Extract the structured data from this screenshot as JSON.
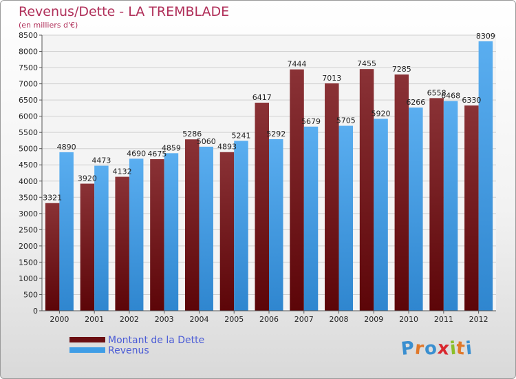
{
  "header": {
    "title": "Revenus/Dette - LA TREMBLADE",
    "subtitle": "(en milliers d'€)"
  },
  "chart_data": {
    "type": "bar",
    "title": "Revenus/Dette - LA TREMBLADE",
    "subtitle": "(en milliers d'€)",
    "categories": [
      "2000",
      "2001",
      "2002",
      "2003",
      "2004",
      "2005",
      "2006",
      "2007",
      "2008",
      "2009",
      "2010",
      "2011",
      "2012"
    ],
    "series": [
      {
        "name": "Montant de la Dette",
        "color": "#6b0f12",
        "values": [
          3321,
          3920,
          4132,
          4675,
          5286,
          4893,
          6417,
          7444,
          7013,
          7455,
          7285,
          6558,
          6330
        ]
      },
      {
        "name": "Revenus",
        "color": "#3f9de6",
        "values": [
          4890,
          4473,
          4690,
          4859,
          5060,
          5241,
          5292,
          5679,
          5705,
          5920,
          6266,
          6468,
          8309
        ]
      }
    ],
    "value_labels": {
      "Montant de la Dette": [
        "3321",
        "3920",
        "4132",
        "4675",
        "5286",
        "4893",
        "6417",
        "7444",
        "7013",
        "7455",
        "7285",
        "6558",
        "6330"
      ],
      "Revenus": [
        "4890",
        "4473",
        "4690",
        "4859",
        "5060",
        "5241",
        "5292",
        "5679",
        "5705",
        "5920",
        "6266",
        "6468",
        "8309"
      ]
    },
    "ylim": [
      0,
      8500
    ],
    "yticks": [
      0,
      500,
      1000,
      1500,
      2000,
      2500,
      3000,
      3500,
      4000,
      4500,
      5000,
      5500,
      6000,
      6500,
      7000,
      7500,
      8000,
      8500
    ],
    "grid": true,
    "legend_position": "bottom-left"
  },
  "legend": {
    "items": [
      {
        "label": "Montant de la Dette",
        "color": "#6b0f12"
      },
      {
        "label": "Revenus",
        "color": "#3f9de6"
      }
    ]
  },
  "logo": {
    "letters": [
      "P",
      "r",
      "o",
      "x",
      "i",
      "t",
      "i"
    ],
    "colors": [
      "#3a8fd0",
      "#e0782a",
      "#3a8fd0",
      "#d9272e",
      "#8bbf2a",
      "#e0782a",
      "#3a8fd0"
    ]
  }
}
